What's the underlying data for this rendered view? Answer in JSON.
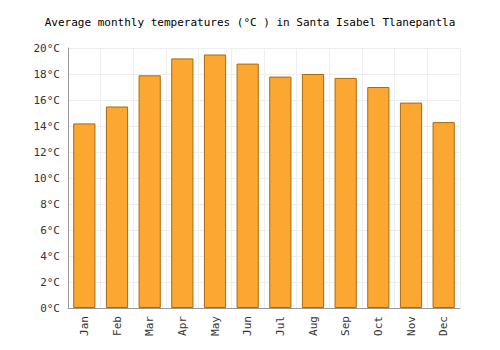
{
  "chart_data": {
    "type": "bar",
    "title": "Average monthly temperatures (°C ) in Santa Isabel Tlanepantla",
    "categories": [
      "Jan",
      "Feb",
      "Mar",
      "Apr",
      "May",
      "Jun",
      "Jul",
      "Aug",
      "Sep",
      "Oct",
      "Nov",
      "Dec"
    ],
    "values": [
      14.2,
      15.5,
      17.9,
      19.2,
      19.5,
      18.8,
      17.8,
      18.0,
      17.7,
      17.0,
      15.8,
      14.3
    ],
    "color": "#fba732",
    "ylim": [
      0,
      20
    ],
    "yticks": [
      {
        "value": 0,
        "label": "0°C"
      },
      {
        "value": 2,
        "label": "2°C"
      },
      {
        "value": 4,
        "label": "4°C"
      },
      {
        "value": 6,
        "label": "6°C"
      },
      {
        "value": 8,
        "label": "8°C"
      },
      {
        "value": 10,
        "label": "10°C"
      },
      {
        "value": 12,
        "label": "12°C"
      },
      {
        "value": 14,
        "label": "14°C"
      },
      {
        "value": 16,
        "label": "16°C"
      },
      {
        "value": 18,
        "label": "18°C"
      },
      {
        "value": 20,
        "label": "20°C"
      }
    ],
    "grid": true
  }
}
